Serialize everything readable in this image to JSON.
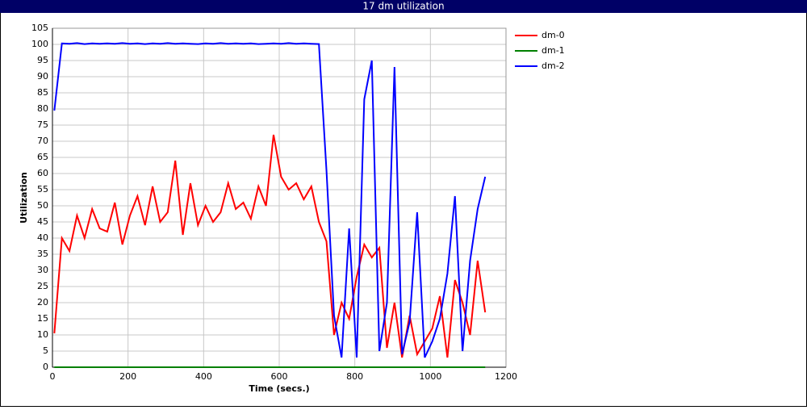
{
  "chart_data": {
    "type": "line",
    "title": "17 dm utilization",
    "x_label": "Time (secs.)",
    "y_label": "Utilization",
    "x": [
      5,
      25,
      45,
      65,
      85,
      105,
      125,
      145,
      165,
      185,
      205,
      225,
      245,
      265,
      285,
      305,
      325,
      345,
      365,
      385,
      405,
      425,
      445,
      465,
      485,
      505,
      525,
      545,
      565,
      585,
      605,
      625,
      645,
      665,
      685,
      705,
      725,
      745,
      765,
      785,
      805,
      825,
      845,
      865,
      885,
      905,
      925,
      945,
      965,
      985,
      1005,
      1025,
      1045,
      1065,
      1085,
      1105,
      1125,
      1145
    ],
    "series": [
      {
        "name": "dm-0",
        "color": "#ff0000",
        "values": [
          10.5,
          40,
          36,
          47,
          40,
          49,
          43,
          42,
          51,
          38,
          47,
          53,
          44,
          56,
          45,
          48,
          64,
          41,
          57,
          44,
          50,
          45,
          48,
          57,
          49,
          51,
          46,
          56,
          50,
          72,
          59,
          55,
          57,
          52,
          56,
          45,
          39,
          10,
          20,
          15,
          28,
          38,
          34,
          37,
          6,
          20,
          3,
          16,
          4,
          8,
          12,
          22,
          3,
          27,
          20,
          10,
          33,
          17
        ]
      },
      {
        "name": "dm-1",
        "color": "#008000",
        "values": [
          0,
          0,
          0,
          0,
          0,
          0,
          0,
          0,
          0,
          0,
          0,
          0,
          0,
          0,
          0,
          0,
          0,
          0,
          0,
          0,
          0,
          0,
          0,
          0,
          0,
          0,
          0,
          0,
          0,
          0,
          0,
          0,
          0,
          0,
          0,
          0,
          0,
          0,
          0,
          0,
          0,
          0,
          0,
          0,
          0,
          0,
          0,
          0,
          0,
          0,
          0,
          0,
          0,
          0,
          0,
          0,
          0,
          0
        ]
      },
      {
        "name": "dm-2",
        "color": "#0000ff",
        "values": [
          79.5,
          100.3,
          100.2,
          100.4,
          100.1,
          100.3,
          100.2,
          100.3,
          100.2,
          100.4,
          100.2,
          100.3,
          100.1,
          100.3,
          100.2,
          100.4,
          100.2,
          100.3,
          100.2,
          100.1,
          100.3,
          100.2,
          100.4,
          100.2,
          100.3,
          100.2,
          100.3,
          100.1,
          100.2,
          100.3,
          100.2,
          100.4,
          100.2,
          100.3,
          100.2,
          100.1,
          61,
          16,
          3,
          43,
          3,
          83,
          95,
          5,
          20,
          93,
          4,
          14,
          48,
          3,
          8,
          15,
          29,
          53,
          5,
          33,
          49,
          59
        ]
      }
    ],
    "xlim": [
      0,
      1200
    ],
    "xticks": [
      0,
      200,
      400,
      600,
      800,
      1000,
      1200
    ],
    "ylim": [
      0,
      105
    ],
    "yticks": [
      0,
      5,
      10,
      15,
      20,
      25,
      30,
      35,
      40,
      45,
      50,
      55,
      60,
      65,
      70,
      75,
      80,
      85,
      90,
      95,
      100,
      105
    ],
    "grid": true,
    "legend": "right"
  }
}
